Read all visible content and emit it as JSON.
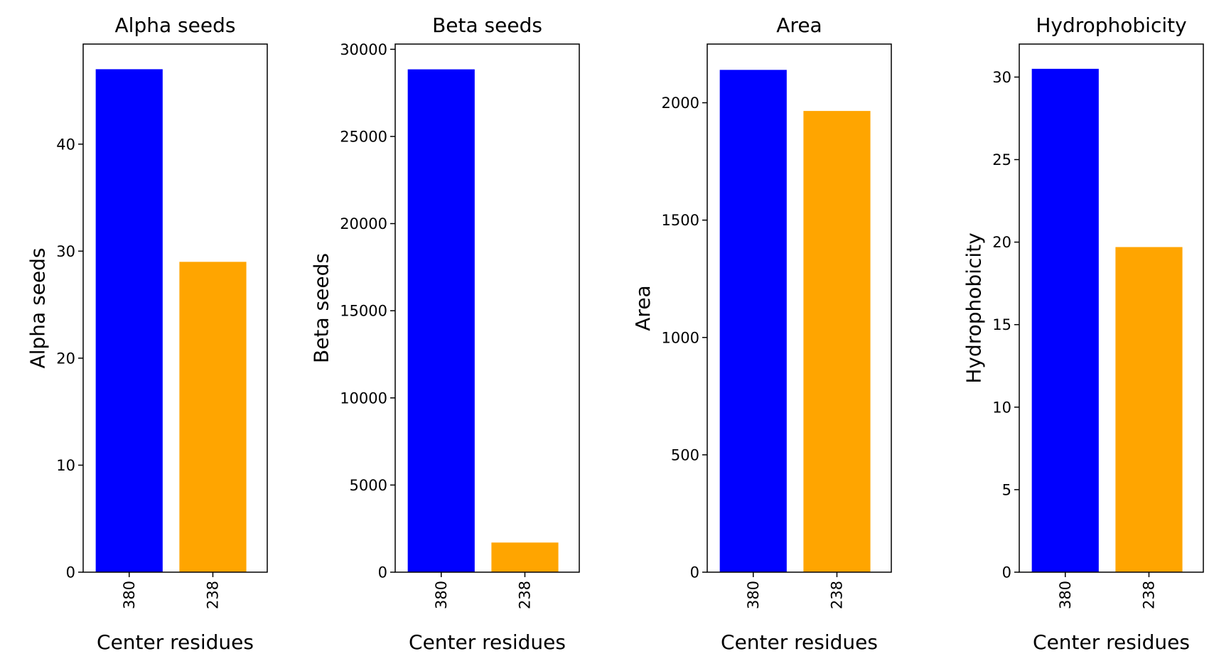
{
  "chart_data": [
    {
      "type": "bar",
      "title": "Alpha seeds",
      "xlabel": "Center residues",
      "ylabel": "Alpha seeds",
      "categories": [
        "380",
        "238"
      ],
      "values": [
        47,
        29
      ],
      "colors": [
        "#0000ff",
        "#ffa500"
      ],
      "ylim": [
        0,
        49.35
      ],
      "yticks": [
        0,
        10,
        20,
        30,
        40
      ],
      "ytick_labels": [
        "0",
        "10",
        "20",
        "30",
        "40"
      ],
      "grid": false,
      "legend": "none"
    },
    {
      "type": "bar",
      "title": "Beta seeds",
      "xlabel": "Center residues",
      "ylabel": "Beta seeds",
      "categories": [
        "380",
        "238"
      ],
      "values": [
        28850,
        1700
      ],
      "colors": [
        "#0000ff",
        "#ffa500"
      ],
      "ylim": [
        0,
        30300
      ],
      "yticks": [
        0,
        5000,
        10000,
        15000,
        20000,
        25000,
        30000
      ],
      "ytick_labels": [
        "0",
        "5000",
        "10000",
        "15000",
        "20000",
        "25000",
        "30000"
      ],
      "grid": false,
      "legend": "none"
    },
    {
      "type": "bar",
      "title": "Area",
      "xlabel": "Center residues",
      "ylabel": "Area",
      "categories": [
        "380",
        "238"
      ],
      "values": [
        2140,
        1965
      ],
      "colors": [
        "#0000ff",
        "#ffa500"
      ],
      "ylim": [
        0,
        2250
      ],
      "yticks": [
        0,
        500,
        1000,
        1500,
        2000
      ],
      "ytick_labels": [
        "0",
        "500",
        "1000",
        "1500",
        "2000"
      ],
      "grid": false,
      "legend": "none"
    },
    {
      "type": "bar",
      "title": "Hydrophobicity",
      "xlabel": "Center residues",
      "ylabel": "Hydrophobicity",
      "categories": [
        "380",
        "238"
      ],
      "values": [
        30.5,
        19.7
      ],
      "colors": [
        "#0000ff",
        "#ffa500"
      ],
      "ylim": [
        0,
        32.0
      ],
      "yticks": [
        0,
        5,
        10,
        15,
        20,
        25,
        30
      ],
      "ytick_labels": [
        "0",
        "5",
        "10",
        "15",
        "20",
        "25",
        "30"
      ],
      "grid": false,
      "legend": "none"
    }
  ]
}
